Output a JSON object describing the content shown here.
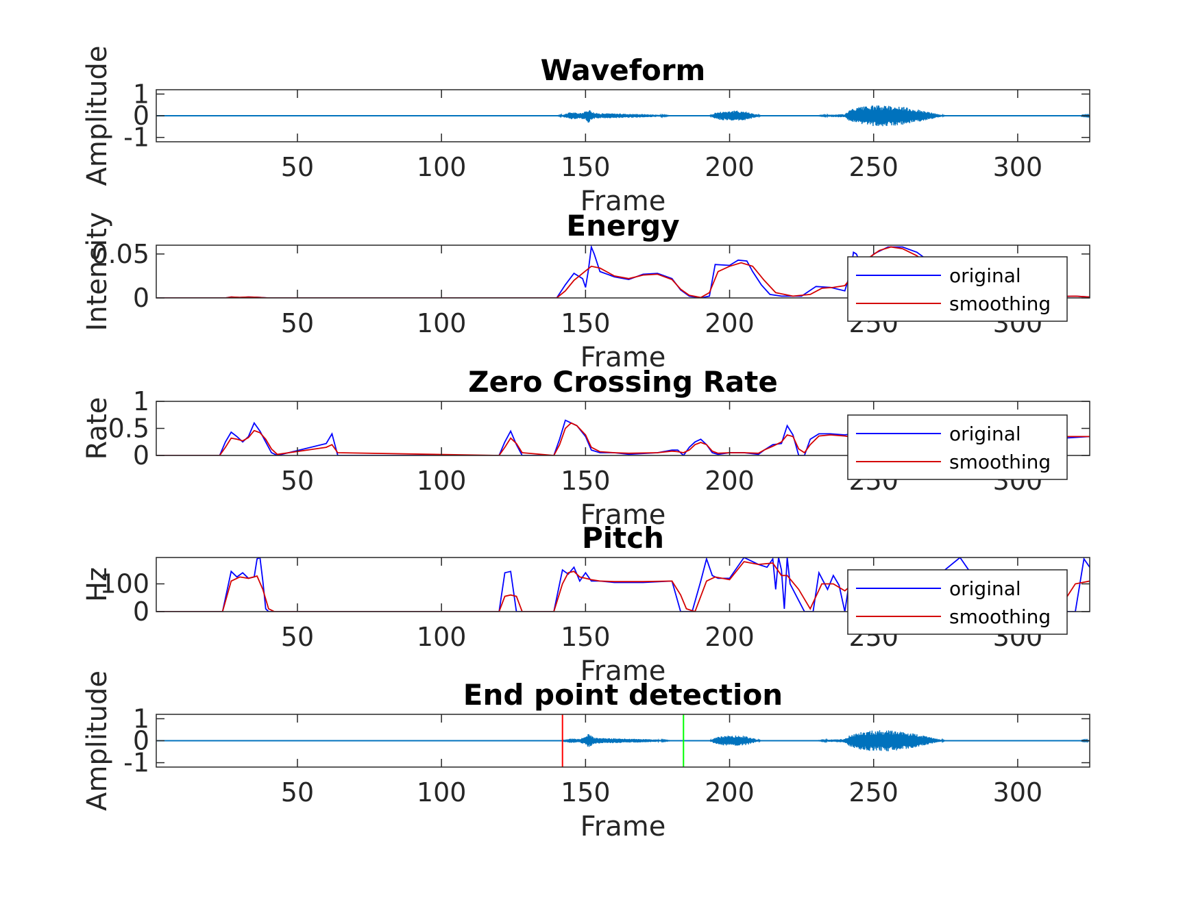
{
  "chart_data": [
    {
      "type": "line",
      "title": "Waveform",
      "xlabel": "Frame",
      "ylabel": "Amplitude",
      "xlim": [
        1,
        325
      ],
      "ylim": [
        -1.2,
        1.2
      ],
      "xticks": [
        50,
        100,
        150,
        200,
        250,
        300
      ],
      "yticks": [
        -1,
        0,
        1
      ],
      "ytick_labels": [
        "-1",
        "0",
        "1"
      ],
      "grid": false,
      "series": [
        {
          "kind": "envelope",
          "color": "#0072bd",
          "segments": [
            {
              "x": [
                140,
                142,
                145,
                148,
                150,
                151,
                152,
                153,
                155,
                160,
                165,
                170,
                175,
                180
              ],
              "amp": [
                0.0,
                0.05,
                0.18,
                0.12,
                0.2,
                0.32,
                0.25,
                0.14,
                0.12,
                0.11,
                0.09,
                0.08,
                0.05,
                0.0
              ]
            },
            {
              "x": [
                193,
                195,
                198,
                202,
                205,
                208,
                211
              ],
              "amp": [
                0.0,
                0.15,
                0.22,
                0.24,
                0.22,
                0.12,
                0.0
              ]
            },
            {
              "x": [
                230,
                235,
                240,
                242,
                245,
                250,
                255,
                260,
                265,
                270,
                275
              ],
              "amp": [
                0.0,
                0.05,
                0.08,
                0.3,
                0.4,
                0.48,
                0.48,
                0.42,
                0.3,
                0.15,
                0.0
              ]
            },
            {
              "x": [
                322,
                325
              ],
              "amp": [
                0.02,
                0.04
              ]
            }
          ]
        }
      ]
    },
    {
      "type": "line",
      "title": "Energy",
      "xlabel": "Frame",
      "ylabel": "Intensity",
      "xlim": [
        1,
        325
      ],
      "ylim": [
        0,
        0.06
      ],
      "xticks": [
        50,
        100,
        150,
        200,
        250,
        300
      ],
      "yticks": [
        0,
        0.05
      ],
      "ytick_labels": [
        "0",
        "0.05"
      ],
      "grid": false,
      "legend": {
        "position": "right",
        "entries": [
          "original",
          "smoothing"
        ]
      },
      "series": [
        {
          "name": "original",
          "color": "#0000ff",
          "x": [
            1,
            25,
            27,
            30,
            33,
            36,
            40,
            140,
            143,
            146,
            149,
            150,
            151,
            152,
            153,
            155,
            160,
            165,
            170,
            175,
            180,
            183,
            186,
            190,
            193,
            195,
            200,
            203,
            206,
            208,
            211,
            214,
            218,
            225,
            230,
            235,
            240,
            242,
            243,
            244,
            246,
            250,
            255,
            260,
            265,
            270,
            275,
            280,
            290,
            300,
            310,
            320,
            325
          ],
          "y": [
            0,
            0,
            0.001,
            0.0005,
            0.001,
            0.0008,
            0,
            0,
            0.015,
            0.028,
            0.022,
            0.012,
            0.032,
            0.058,
            0.05,
            0.03,
            0.024,
            0.021,
            0.027,
            0.028,
            0.022,
            0.009,
            0.002,
            0.0,
            0.002,
            0.038,
            0.037,
            0.043,
            0.042,
            0.03,
            0.015,
            0.004,
            0.002,
            0.002,
            0.013,
            0.012,
            0.008,
            0.03,
            0.052,
            0.05,
            0.035,
            0.05,
            0.058,
            0.058,
            0.052,
            0.04,
            0.025,
            0.015,
            0.006,
            0.003,
            0.001,
            0.002,
            0.001
          ]
        },
        {
          "name": "smoothing",
          "color": "#d40000",
          "x": [
            1,
            25,
            27,
            30,
            33,
            36,
            40,
            140,
            143,
            146,
            149,
            152,
            155,
            160,
            165,
            170,
            175,
            180,
            183,
            186,
            190,
            193,
            196,
            200,
            204,
            208,
            212,
            216,
            222,
            228,
            232,
            236,
            240,
            244,
            248,
            252,
            256,
            260,
            265,
            270,
            275,
            280,
            290,
            300,
            310,
            320,
            325
          ],
          "y": [
            0,
            0,
            0.001,
            0.0006,
            0.001,
            0.0008,
            0,
            0,
            0.008,
            0.02,
            0.028,
            0.036,
            0.034,
            0.025,
            0.022,
            0.026,
            0.027,
            0.021,
            0.01,
            0.003,
            0.0005,
            0.006,
            0.03,
            0.036,
            0.04,
            0.036,
            0.02,
            0.006,
            0.002,
            0.004,
            0.011,
            0.012,
            0.014,
            0.03,
            0.045,
            0.054,
            0.058,
            0.056,
            0.048,
            0.036,
            0.022,
            0.012,
            0.005,
            0.002,
            0.0015,
            0.002,
            0.001
          ]
        }
      ]
    },
    {
      "type": "line",
      "title": "Zero Crossing Rate",
      "xlabel": "Frame",
      "ylabel": "Rate",
      "xlim": [
        1,
        325
      ],
      "ylim": [
        0,
        1
      ],
      "xticks": [
        50,
        100,
        150,
        200,
        250,
        300
      ],
      "yticks": [
        0,
        0.5,
        1
      ],
      "ytick_labels": [
        "0",
        "0.5",
        "1"
      ],
      "grid": false,
      "legend": {
        "position": "right",
        "entries": [
          "original",
          "smoothing"
        ]
      },
      "series": [
        {
          "name": "original",
          "color": "#0000ff",
          "x": [
            1,
            23,
            25,
            27,
            29,
            31,
            33,
            35,
            37,
            39,
            41,
            43,
            60,
            62,
            64,
            120,
            122,
            124,
            126,
            128,
            139,
            141,
            143,
            145,
            147,
            150,
            152,
            155,
            160,
            165,
            175,
            180,
            182,
            184,
            186,
            188,
            190,
            192,
            194,
            196,
            200,
            205,
            210,
            212,
            215,
            218,
            220,
            222,
            224,
            226,
            228,
            231,
            235,
            240,
            245,
            250,
            295,
            300,
            303,
            305,
            307,
            310,
            325
          ],
          "y": [
            0,
            0,
            0.25,
            0.43,
            0.35,
            0.25,
            0.35,
            0.6,
            0.45,
            0.25,
            0.05,
            0,
            0.22,
            0.4,
            0.0,
            0.0,
            0.25,
            0.45,
            0.2,
            0.0,
            0.0,
            0.3,
            0.65,
            0.6,
            0.55,
            0.35,
            0.1,
            0.05,
            0.05,
            0.02,
            0.05,
            0.1,
            0.1,
            0.0,
            0.15,
            0.25,
            0.3,
            0.2,
            0.05,
            0.02,
            0.05,
            0.05,
            0.02,
            0.1,
            0.2,
            0.22,
            0.55,
            0.38,
            0.0,
            0.0,
            0.3,
            0.4,
            0.4,
            0.38,
            0.42,
            0.2,
            0.0,
            0.15,
            0.0,
            0.3,
            0.5,
            0.3,
            0.35
          ]
        },
        {
          "name": "smoothing",
          "color": "#d40000",
          "x": [
            1,
            23,
            25,
            27,
            29,
            31,
            33,
            35,
            37,
            39,
            41,
            43,
            60,
            62,
            64,
            120,
            122,
            124,
            126,
            128,
            139,
            141,
            143,
            145,
            147,
            150,
            152,
            155,
            160,
            165,
            175,
            180,
            182,
            184,
            186,
            188,
            190,
            192,
            194,
            196,
            200,
            205,
            210,
            212,
            215,
            218,
            220,
            222,
            224,
            226,
            228,
            231,
            235,
            240,
            245,
            250,
            295,
            300,
            303,
            305,
            307,
            310,
            325
          ],
          "y": [
            0,
            0,
            0.15,
            0.32,
            0.3,
            0.27,
            0.33,
            0.46,
            0.42,
            0.3,
            0.12,
            0.02,
            0.15,
            0.2,
            0.05,
            0.0,
            0.15,
            0.32,
            0.22,
            0.05,
            0.0,
            0.2,
            0.5,
            0.6,
            0.55,
            0.38,
            0.15,
            0.07,
            0.05,
            0.04,
            0.05,
            0.08,
            0.07,
            0.05,
            0.1,
            0.2,
            0.24,
            0.2,
            0.08,
            0.04,
            0.05,
            0.05,
            0.04,
            0.1,
            0.17,
            0.25,
            0.38,
            0.35,
            0.12,
            0.05,
            0.2,
            0.36,
            0.38,
            0.36,
            0.32,
            0.18,
            0.05,
            0.1,
            0.1,
            0.25,
            0.4,
            0.35,
            0.35
          ]
        }
      ]
    },
    {
      "type": "line",
      "title": "Pitch",
      "xlabel": "Frame",
      "ylabel": "Hz",
      "xlim": [
        1,
        325
      ],
      "ylim": [
        0,
        195
      ],
      "xticks": [
        50,
        100,
        150,
        200,
        250,
        300
      ],
      "yticks": [
        0,
        100
      ],
      "ytick_labels": [
        "0",
        "100"
      ],
      "grid": false,
      "legend": {
        "position": "right",
        "entries": [
          "original",
          "smoothing"
        ]
      },
      "series": [
        {
          "name": "original",
          "color": "#0000ff",
          "x": [
            1,
            24,
            27,
            29,
            31,
            33,
            35,
            36,
            37,
            38,
            39,
            40,
            120,
            122,
            124,
            126,
            128,
            139,
            142,
            144,
            146,
            148,
            149,
            150,
            152,
            155,
            160,
            170,
            180,
            183,
            185,
            187,
            190,
            192,
            194,
            196,
            200,
            205,
            208,
            210,
            213,
            215,
            216,
            217,
            218,
            219,
            220,
            221,
            224,
            226,
            229,
            231,
            234,
            236,
            238,
            240,
            242,
            244,
            246,
            248,
            250,
            252,
            255,
            270,
            280,
            283,
            286,
            290,
            300,
            305,
            310,
            320,
            323,
            325
          ],
          "y": [
            0,
            0,
            145,
            125,
            140,
            120,
            125,
            190,
            195,
            110,
            10,
            0,
            0,
            140,
            145,
            0,
            0,
            0,
            150,
            135,
            160,
            110,
            125,
            140,
            110,
            110,
            105,
            105,
            110,
            0,
            0,
            0,
            110,
            190,
            130,
            120,
            120,
            195,
            180,
            170,
            160,
            190,
            80,
            195,
            150,
            10,
            195,
            100,
            40,
            0,
            0,
            140,
            80,
            130,
            95,
            0,
            140,
            120,
            100,
            110,
            90,
            100,
            110,
            110,
            195,
            150,
            100,
            0,
            0,
            80,
            0,
            0,
            190,
            160
          ]
        },
        {
          "name": "smoothing",
          "color": "#d40000",
          "x": [
            1,
            24,
            27,
            30,
            33,
            36,
            38,
            40,
            42,
            120,
            122,
            124,
            126,
            128,
            139,
            142,
            144,
            146,
            148,
            150,
            152,
            155,
            160,
            170,
            180,
            183,
            185,
            188,
            190,
            192,
            195,
            200,
            205,
            210,
            215,
            218,
            220,
            224,
            228,
            232,
            236,
            240,
            244,
            248,
            252,
            256,
            270,
            280,
            290,
            300,
            305,
            310,
            315,
            320,
            325
          ],
          "y": [
            0,
            0,
            110,
            125,
            120,
            128,
            80,
            10,
            0,
            0,
            55,
            60,
            55,
            0,
            0,
            100,
            140,
            145,
            125,
            120,
            115,
            110,
            108,
            108,
            110,
            60,
            10,
            0,
            55,
            110,
            125,
            115,
            180,
            170,
            175,
            130,
            130,
            80,
            10,
            100,
            100,
            75,
            110,
            115,
            110,
            108,
            110,
            130,
            80,
            0,
            10,
            30,
            20,
            100,
            110
          ]
        }
      ]
    },
    {
      "type": "line",
      "title": "End point detection",
      "xlabel": "Frame",
      "ylabel": "Amplitude",
      "xlim": [
        1,
        325
      ],
      "ylim": [
        -1.2,
        1.2
      ],
      "xticks": [
        50,
        100,
        150,
        200,
        250,
        300
      ],
      "yticks": [
        -1,
        0,
        1
      ],
      "ytick_labels": [
        "-1",
        "0",
        "1"
      ],
      "grid": false,
      "series": [
        {
          "kind": "envelope",
          "color": "#0072bd",
          "segments": [
            {
              "x": [
                142,
                145,
                148,
                150,
                151,
                152,
                153,
                155,
                160,
                165,
                170,
                175,
                180
              ],
              "amp": [
                0.05,
                0.1,
                0.08,
                0.2,
                0.32,
                0.25,
                0.14,
                0.12,
                0.11,
                0.09,
                0.08,
                0.05,
                0.0
              ]
            },
            {
              "x": [
                193,
                195,
                198,
                202,
                205,
                208,
                211
              ],
              "amp": [
                0.0,
                0.15,
                0.22,
                0.24,
                0.22,
                0.12,
                0.0
              ]
            },
            {
              "x": [
                230,
                235,
                240,
                242,
                245,
                250,
                255,
                260,
                265,
                270,
                275
              ],
              "amp": [
                0.0,
                0.05,
                0.08,
                0.3,
                0.4,
                0.48,
                0.48,
                0.42,
                0.3,
                0.15,
                0.0
              ]
            },
            {
              "x": [
                322,
                325
              ],
              "amp": [
                0.02,
                0.04
              ]
            }
          ]
        }
      ],
      "vlines": [
        {
          "x": 142,
          "color": "#ff0000"
        },
        {
          "x": 184,
          "color": "#00ff00"
        }
      ]
    }
  ]
}
